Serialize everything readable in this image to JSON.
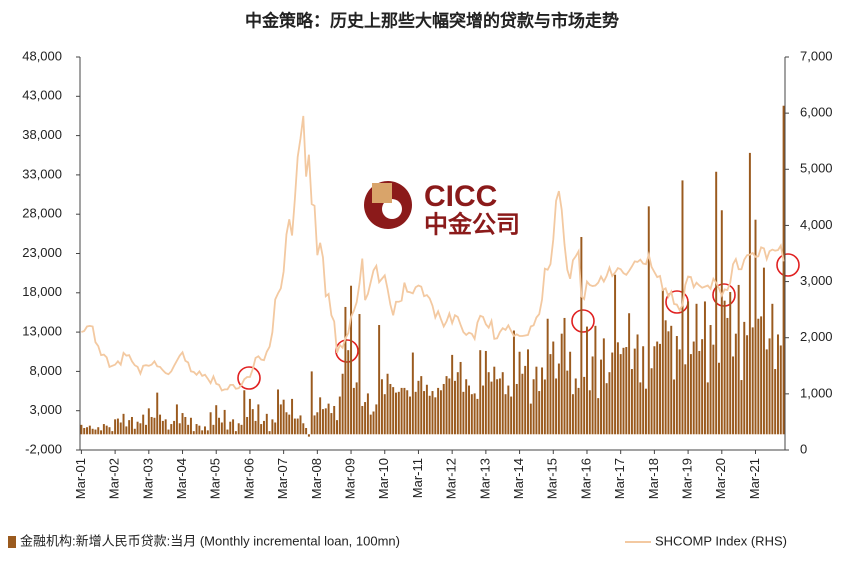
{
  "chart_data": {
    "type": "bar_line",
    "title": "中金策略：历史上那些大幅突增的贷款与市场走势",
    "annotations": [
      "CICC",
      "中金公司"
    ],
    "categories": [
      "Mar-01",
      null,
      null,
      null,
      null,
      null,
      null,
      null,
      null,
      null,
      null,
      null,
      "Mar-02",
      null,
      null,
      null,
      null,
      null,
      null,
      null,
      null,
      null,
      null,
      null,
      "Mar-03",
      null,
      null,
      null,
      null,
      null,
      null,
      null,
      null,
      null,
      null,
      null,
      "Mar-04",
      null,
      null,
      null,
      null,
      null,
      null,
      null,
      null,
      null,
      null,
      null,
      "Mar-05",
      null,
      null,
      null,
      null,
      null,
      null,
      null,
      null,
      null,
      null,
      null,
      "Mar-06",
      null,
      null,
      null,
      null,
      null,
      null,
      null,
      null,
      null,
      null,
      null,
      "Mar-07",
      null,
      null,
      null,
      null,
      null,
      null,
      null,
      null,
      null,
      null,
      null,
      "Mar-08",
      null,
      null,
      null,
      null,
      null,
      null,
      null,
      null,
      null,
      null,
      null,
      "Mar-09",
      null,
      null,
      null,
      null,
      null,
      null,
      null,
      null,
      null,
      null,
      null,
      "Mar-10",
      null,
      null,
      null,
      null,
      null,
      null,
      null,
      null,
      null,
      null,
      null,
      "Mar-11",
      null,
      null,
      null,
      null,
      null,
      null,
      null,
      null,
      null,
      null,
      null,
      "Mar-12",
      null,
      null,
      null,
      null,
      null,
      null,
      null,
      null,
      null,
      null,
      null,
      "Mar-13",
      null,
      null,
      null,
      null,
      null,
      null,
      null,
      null,
      null,
      null,
      null,
      "Mar-14",
      null,
      null,
      null,
      null,
      null,
      null,
      null,
      null,
      null,
      null,
      null,
      "Mar-15",
      null,
      null,
      null,
      null,
      null,
      null,
      null,
      null,
      null,
      null,
      null,
      "Mar-16",
      null,
      null,
      null,
      null,
      null,
      null,
      null,
      null,
      null,
      null,
      null,
      "Mar-17",
      null,
      null,
      null,
      null,
      null,
      null,
      null,
      null,
      null,
      null,
      null,
      "Mar-18",
      null,
      null,
      null,
      null,
      null,
      null,
      null,
      null,
      null,
      null,
      null,
      "Mar-19",
      null,
      null,
      null,
      null,
      null,
      null,
      null,
      null,
      null,
      null,
      null,
      "Mar-20",
      null,
      null,
      null,
      null,
      null,
      null,
      null,
      null,
      null,
      null,
      null,
      "Mar-21",
      null,
      null,
      null,
      null,
      null,
      null,
      null,
      null,
      null,
      null
    ],
    "series": [
      {
        "name": "金融机构:新增人民币贷款:当月 (Monthly incremental loan, 100mn)",
        "type": "bar",
        "color": "#9a5a1e",
        "values": [
          1200,
          800,
          900,
          1100,
          700,
          600,
          900,
          500,
          1300,
          1100,
          900,
          400,
          1900,
          2000,
          1500,
          2600,
          1000,
          1800,
          2200,
          700,
          1600,
          1400,
          2500,
          1200,
          3300,
          2200,
          2100,
          5300,
          2500,
          1700,
          1900,
          600,
          1300,
          1700,
          3800,
          1400,
          2700,
          2200,
          1200,
          2100,
          400,
          1300,
          1100,
          500,
          1000,
          500,
          2800,
          1200,
          3700,
          2100,
          1500,
          3100,
          600,
          1600,
          1900,
          400,
          1400,
          1200,
          5600,
          2200,
          4500,
          3200,
          1700,
          3800,
          1300,
          1700,
          2600,
          400,
          1900,
          1500,
          5700,
          3800,
          4400,
          2800,
          2500,
          4500,
          2000,
          2000,
          2400,
          1400,
          800,
          -300,
          8000,
          2400,
          2800,
          4700,
          3200,
          3300,
          3900,
          2700,
          3600,
          1800,
          4800,
          7700,
          16200,
          10700,
          18900,
          5900,
          6600,
          15300,
          3600,
          4100,
          5200,
          2500,
          2900,
          3800,
          13900,
          7000,
          5100,
          7700,
          6400,
          6000,
          5300,
          5400,
          5900,
          5900,
          5600,
          4800,
          10400,
          5400,
          6800,
          7400,
          5500,
          6300,
          4900,
          5500,
          4700,
          5900,
          5600,
          6400,
          7400,
          7100,
          10100,
          6800,
          7900,
          9200,
          5400,
          7000,
          6200,
          5100,
          5200,
          4500,
          10700,
          6200,
          10600,
          7900,
          6700,
          8600,
          7000,
          7100,
          7900,
          5100,
          6200,
          4800,
          13200,
          6400,
          10500,
          7700,
          8700,
          10800,
          3900,
          7000,
          8600,
          5500,
          8500,
          6970,
          14700,
          10200,
          11800,
          7100,
          9000,
          12800,
          14800,
          8100,
          10500,
          5100,
          7100,
          5900,
          25100,
          7300,
          13700,
          5600,
          9900,
          13800,
          4600,
          9500,
          12200,
          6500,
          7900,
          10400,
          20300,
          11700,
          10200,
          11000,
          11100,
          15400,
          8300,
          10900,
          12700,
          6600,
          11200,
          5800,
          29000,
          8400,
          11200,
          11800,
          11500,
          18400,
          14500,
          13100,
          13800,
          6970,
          12500,
          10800,
          32300,
          8900,
          16900,
          10200,
          11800,
          16600,
          10600,
          12100,
          16900,
          6600,
          13900,
          11400,
          33400,
          9100,
          28500,
          17000,
          14800,
          18100,
          9900,
          12800,
          19000,
          6900,
          14300,
          12600,
          35800,
          13600,
          27300,
          14700,
          15000,
          21200,
          10800,
          12200,
          16600,
          8300,
          12700,
          11300,
          41800
        ]
      },
      {
        "name": "SHCOMP Index (RHS)",
        "type": "line",
        "axis": "y2",
        "color": "#f3c9a1",
        "values": [
          2100,
          2120,
          2200,
          2210,
          2200,
          1920,
          1850,
          1690,
          1700,
          1650,
          1480,
          1500,
          1520,
          1580,
          1520,
          1730,
          1680,
          1690,
          1580,
          1510,
          1480,
          1360,
          1500,
          1510,
          1500,
          1520,
          1580,
          1490,
          1480,
          1420,
          1370,
          1350,
          1400,
          1500,
          1590,
          1680,
          1740,
          1590,
          1560,
          1400,
          1390,
          1340,
          1400,
          1320,
          1340,
          1270,
          1190,
          1310,
          1180,
          1160,
          1060,
          1080,
          1080,
          1160,
          1160,
          1090,
          1100,
          1160,
          1260,
          1300,
          1300,
          1440,
          1640,
          1670,
          1610,
          1600,
          1750,
          1840,
          2100,
          2680,
          2790,
          2880,
          3180,
          3840,
          4110,
          3820,
          4470,
          5220,
          5550,
          5950,
          4870,
          5260,
          4380,
          4350,
          3470,
          3690,
          3430,
          2740,
          2780,
          2400,
          2290,
          1730,
          1870,
          1820,
          1990,
          2080,
          2370,
          2480,
          2630,
          2960,
          3410,
          2670,
          2780,
          2990,
          3200,
          3280,
          2990,
          3050,
          3110,
          2870,
          2590,
          2400,
          2640,
          2640,
          2660,
          2980,
          2820,
          2810,
          2790,
          2900,
          2930,
          2910,
          2740,
          2760,
          2700,
          2570,
          2360,
          2470,
          2330,
          2200,
          2290,
          2430,
          2260,
          2400,
          2370,
          2230,
          2100,
          2050,
          2090,
          2070,
          1980,
          2270,
          2390,
          2370,
          2240,
          2180,
          2300,
          1980,
          1990,
          2100,
          2170,
          2140,
          2220,
          2120,
          2030,
          2060,
          2030,
          2030,
          2040,
          2050,
          2200,
          2220,
          2360,
          2420,
          2680,
          3230,
          3210,
          3310,
          3750,
          4440,
          4610,
          4280,
          3660,
          3210,
          3050,
          3380,
          3450,
          3540,
          2740,
          2690,
          3000,
          2940,
          2920,
          2930,
          2980,
          3090,
          3000,
          3100,
          3250,
          3100,
          3160,
          3240,
          3220,
          3150,
          3120,
          3190,
          3270,
          3360,
          3350,
          3390,
          3320,
          3310,
          3480,
          3260,
          3170,
          3080,
          3100,
          2850,
          2880,
          2730,
          2820,
          2600,
          2590,
          2490,
          2580,
          2940,
          3090,
          3080,
          2900,
          2980,
          2930,
          2890,
          2910,
          2930,
          2870,
          3050,
          2980,
          2880,
          2750,
          2860,
          2850,
          2980,
          3310,
          3400,
          3220,
          3220,
          3390,
          3470,
          3480,
          3510,
          3440,
          3450,
          3610,
          3590,
          3400,
          3540,
          3570,
          3550,
          3560,
          3640,
          3360
        ]
      }
    ],
    "ylim": [
      -2000,
      48000
    ],
    "yticks": [
      {
        "value": -2000,
        "label": "-2,000"
      },
      {
        "value": 3000,
        "label": "3,000"
      },
      {
        "value": 8000,
        "label": "8,000"
      },
      {
        "value": 13000,
        "label": "13,000"
      },
      {
        "value": 18000,
        "label": "18,000"
      },
      {
        "value": 23000,
        "label": "23,000"
      },
      {
        "value": 28000,
        "label": "28,000"
      },
      {
        "value": 33000,
        "label": "33,000"
      },
      {
        "value": 38000,
        "label": "38,000"
      },
      {
        "value": 43000,
        "label": "43,000"
      },
      {
        "value": 48000,
        "label": "48,000"
      }
    ],
    "y2lim": [
      0,
      7000
    ],
    "y2ticks": [
      0,
      {
        "value": 1000,
        "label": "1,000"
      },
      {
        "value": 2000,
        "label": "2,000"
      },
      {
        "value": 3000,
        "label": "3,000"
      },
      {
        "value": 4000,
        "label": "4,000"
      },
      {
        "value": 5000,
        "label": "5,000"
      },
      {
        "value": 6000,
        "label": "6,000"
      },
      {
        "value": 7000,
        "label": "7,000"
      }
    ],
    "grid": false
  }
}
